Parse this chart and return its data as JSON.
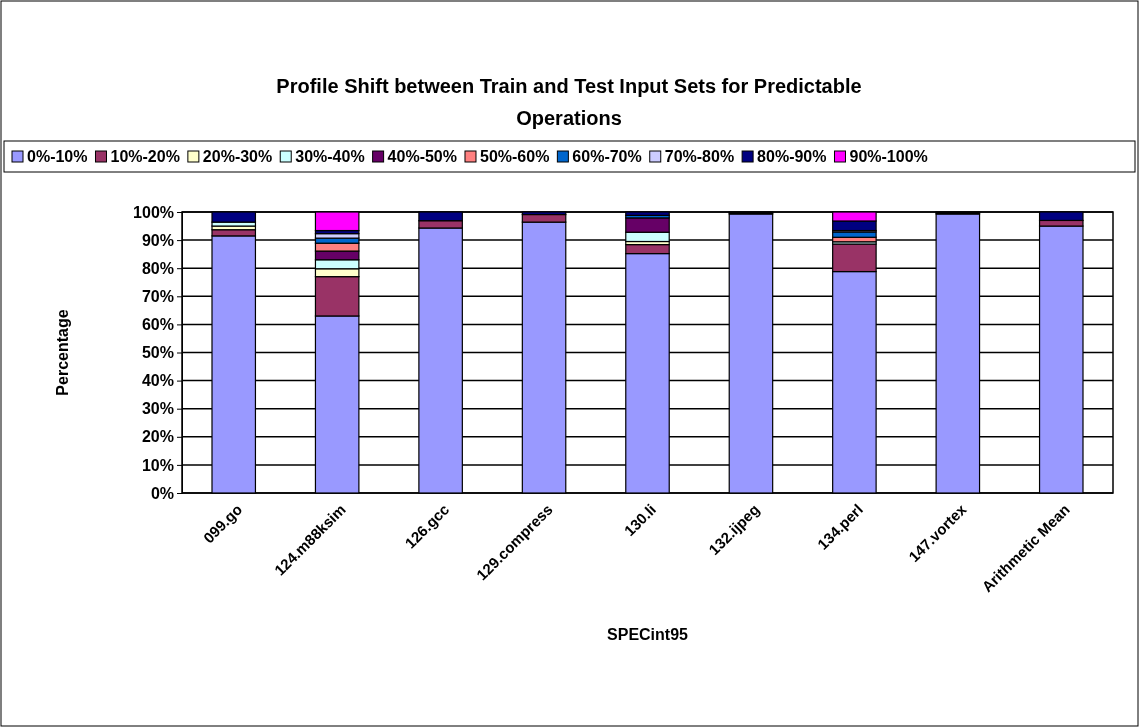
{
  "chart_data": {
    "type": "bar",
    "stacked": true,
    "title": "Profile Shift between Train and Test Input Sets for Predictable Operations",
    "xlabel": "SPECint95",
    "ylabel": "Percentage",
    "categories": [
      "099.go",
      "124.m88ksim",
      "126.gcc",
      "129.compress",
      "130.li",
      "132.ijpeg",
      "134.perl",
      "147.vortex",
      "Arithmetic Mean"
    ],
    "series": [
      {
        "name": "0%-10%",
        "color": "#9999ff",
        "values": [
          91.5,
          63,
          94.3,
          96.4,
          85.2,
          99.3,
          78.8,
          99.3,
          95
        ]
      },
      {
        "name": "10%-20%",
        "color": "#993366",
        "values": [
          2.2,
          14,
          2.6,
          2.7,
          3.2,
          0.4,
          9.8,
          0.4,
          2
        ]
      },
      {
        "name": "20%-30%",
        "color": "#ffffcc",
        "values": [
          1.3,
          2.8,
          0,
          0,
          1.1,
          0,
          0,
          0,
          0
        ]
      },
      {
        "name": "30%-40%",
        "color": "#ccffff",
        "values": [
          1.4,
          3.2,
          0,
          0,
          3.3,
          0,
          0.8,
          0,
          0
        ]
      },
      {
        "name": "40%-50%",
        "color": "#660066",
        "values": [
          0,
          3.1,
          0,
          0,
          5.1,
          0,
          0,
          0,
          0
        ]
      },
      {
        "name": "50%-60%",
        "color": "#ff8080",
        "values": [
          0,
          2.8,
          0,
          0,
          0,
          0,
          1.6,
          0,
          0
        ]
      },
      {
        "name": "60%-70%",
        "color": "#0066cc",
        "values": [
          0,
          1.8,
          0,
          0,
          0.9,
          0,
          1.9,
          0,
          0
        ]
      },
      {
        "name": "70%-80%",
        "color": "#ccccff",
        "values": [
          0,
          1.6,
          0,
          0,
          0,
          0,
          0.5,
          0,
          0
        ]
      },
      {
        "name": "80%-90%",
        "color": "#000080",
        "values": [
          3.6,
          1.1,
          3.1,
          0.9,
          1.2,
          0.3,
          3.4,
          0.3,
          3
        ]
      },
      {
        "name": "90%-100%",
        "color": "#ff00ff",
        "values": [
          0,
          6.6,
          0,
          0,
          0,
          0,
          3.2,
          0,
          0
        ]
      }
    ],
    "ylim": [
      0,
      100
    ],
    "yticks": [
      {
        "value": 0,
        "label": "0%"
      },
      {
        "value": 10,
        "label": "10%"
      },
      {
        "value": 20,
        "label": "20%"
      },
      {
        "value": 30,
        "label": "30%"
      },
      {
        "value": 40,
        "label": "40%"
      },
      {
        "value": 50,
        "label": "50%"
      },
      {
        "value": 60,
        "label": "60%"
      },
      {
        "value": 70,
        "label": "70%"
      },
      {
        "value": 80,
        "label": "80%"
      },
      {
        "value": 90,
        "label": "90%"
      },
      {
        "value": 100,
        "label": "100%"
      }
    ],
    "grid": "y",
    "legend": "top"
  }
}
